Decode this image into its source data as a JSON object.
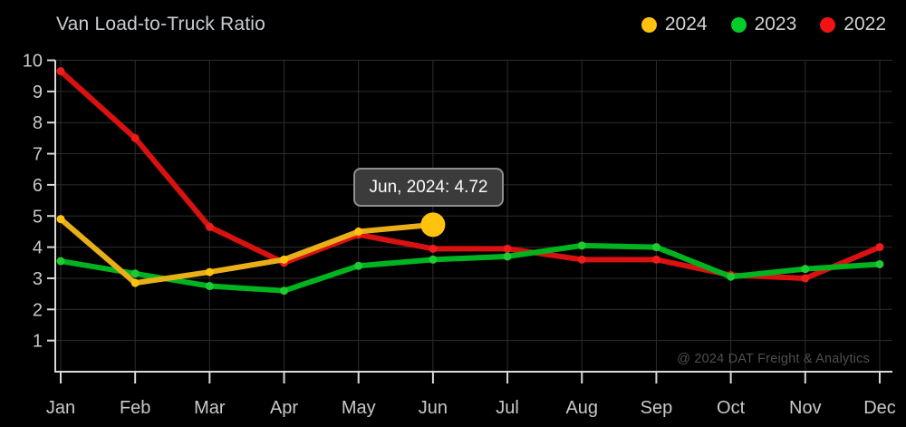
{
  "title": "Van Load-to-Truck Ratio",
  "legend": {
    "items": [
      {
        "label": "2024",
        "color": "#ffc30f"
      },
      {
        "label": "2023",
        "color": "#00cd28"
      },
      {
        "label": "2022",
        "color": "#f01414"
      }
    ]
  },
  "tooltip": {
    "text": "Jun, 2024: 4.72"
  },
  "watermark": "@ 2024 DAT Freight & Analytics",
  "colors": {
    "background": "#000000",
    "grid": "#2d2d2d",
    "axis": "#d9d9d9",
    "tick_text": "#c9c9c9"
  },
  "chart_data": {
    "type": "line",
    "title": "Van Load-to-Truck Ratio",
    "categories": [
      "Jan",
      "Feb",
      "Mar",
      "Apr",
      "May",
      "Jun",
      "Jul",
      "Aug",
      "Sep",
      "Oct",
      "Nov",
      "Dec"
    ],
    "series": [
      {
        "name": "2024",
        "color": "#e9af19",
        "marker_color": "#ffc30f",
        "values": [
          4.9,
          2.85,
          3.2,
          3.6,
          4.5,
          4.72,
          null,
          null,
          null,
          null,
          null,
          null
        ]
      },
      {
        "name": "2023",
        "color": "#00b41f",
        "marker_color": "#1ecb32",
        "values": [
          3.55,
          3.15,
          2.75,
          2.6,
          3.4,
          3.6,
          3.7,
          4.05,
          4.0,
          3.05,
          3.3,
          3.45
        ]
      },
      {
        "name": "2022",
        "color": "#d81111",
        "marker_color": "#ee1c1c",
        "values": [
          9.65,
          7.5,
          4.65,
          3.5,
          4.4,
          3.95,
          3.95,
          3.6,
          3.6,
          3.1,
          3.0,
          4.0
        ]
      }
    ],
    "xlabel": "",
    "ylabel": "",
    "ylim": [
      0,
      10
    ],
    "yticks": [
      1,
      2,
      3,
      4,
      5,
      6,
      7,
      8,
      9,
      10
    ],
    "grid": true,
    "legend_position": "top-right",
    "highlight": {
      "series": "2024",
      "category": "Jun",
      "value": 4.72
    }
  }
}
